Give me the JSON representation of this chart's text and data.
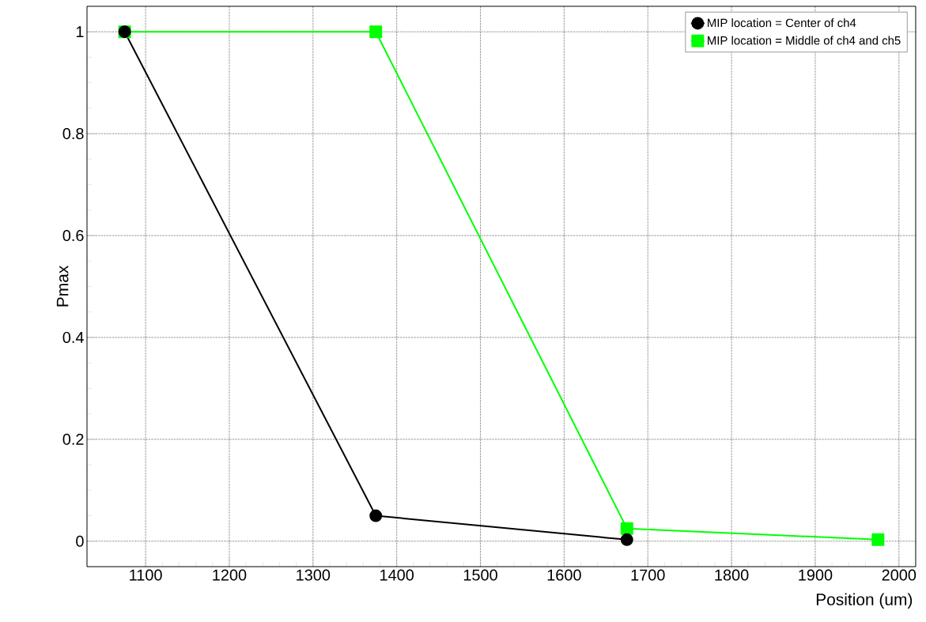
{
  "chart_data": {
    "type": "line",
    "xlabel": "Position (um)",
    "ylabel": "Pmax",
    "x": [
      1075,
      1375,
      1675,
      1975
    ],
    "series": [
      {
        "name": "MIP location = Center of ch4",
        "color": "#000000",
        "marker": "circle",
        "values": [
          1,
          0.05,
          0.003,
          null
        ]
      },
      {
        "name": "MIP location = Middle of ch4 and ch5",
        "color": "#00ff00",
        "marker": "square",
        "values": [
          1,
          1,
          0.025,
          0.003
        ]
      }
    ],
    "xlim": [
      1030,
      2020
    ],
    "ylim": [
      -0.05,
      1.05
    ],
    "xticks": [
      1100,
      1200,
      1300,
      1400,
      1500,
      1600,
      1700,
      1800,
      1900,
      2000
    ],
    "yticks": [
      0,
      0.2,
      0.4,
      0.6,
      0.8,
      1
    ],
    "grid": true,
    "legend": "top right"
  }
}
